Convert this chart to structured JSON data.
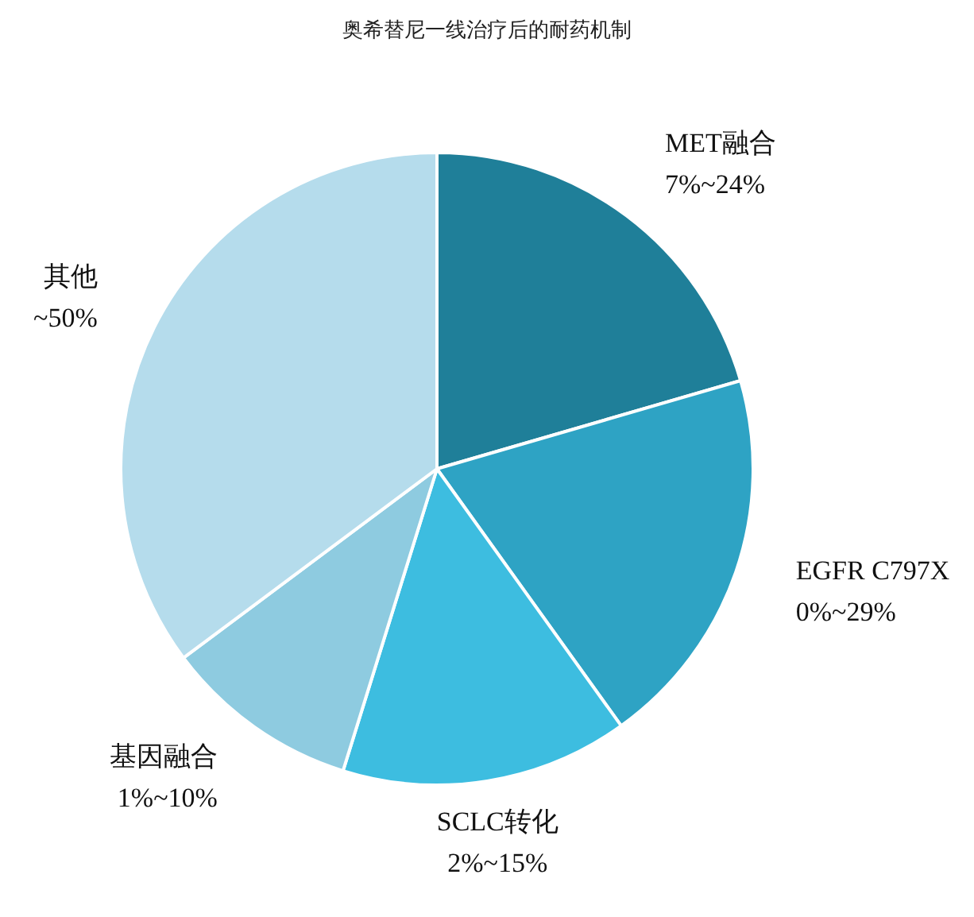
{
  "chart_data": {
    "type": "pie",
    "title": "奥希替尼一线治疗后的耐药机制",
    "categories": [
      "MET融合",
      "EGFR C797X",
      "SCLC转化",
      "基因融合",
      "其他"
    ],
    "values": [
      20.5,
      19.6,
      14.7,
      10,
      35.2
    ],
    "annotations": [
      {
        "text": "7%~24%",
        "x": "MET融合"
      },
      {
        "text": "0%~29%",
        "x": "EGFR C797X"
      },
      {
        "text": "2%~15%",
        "x": "SCLC转化"
      },
      {
        "text": "1%~10%",
        "x": "基因融合"
      },
      {
        "text": "~50%",
        "x": "其他"
      }
    ],
    "colors": [
      "#1f7f99",
      "#2ea3c4",
      "#3dbde0",
      "#8ecbe0",
      "#b5dcec"
    ],
    "legend": false
  }
}
